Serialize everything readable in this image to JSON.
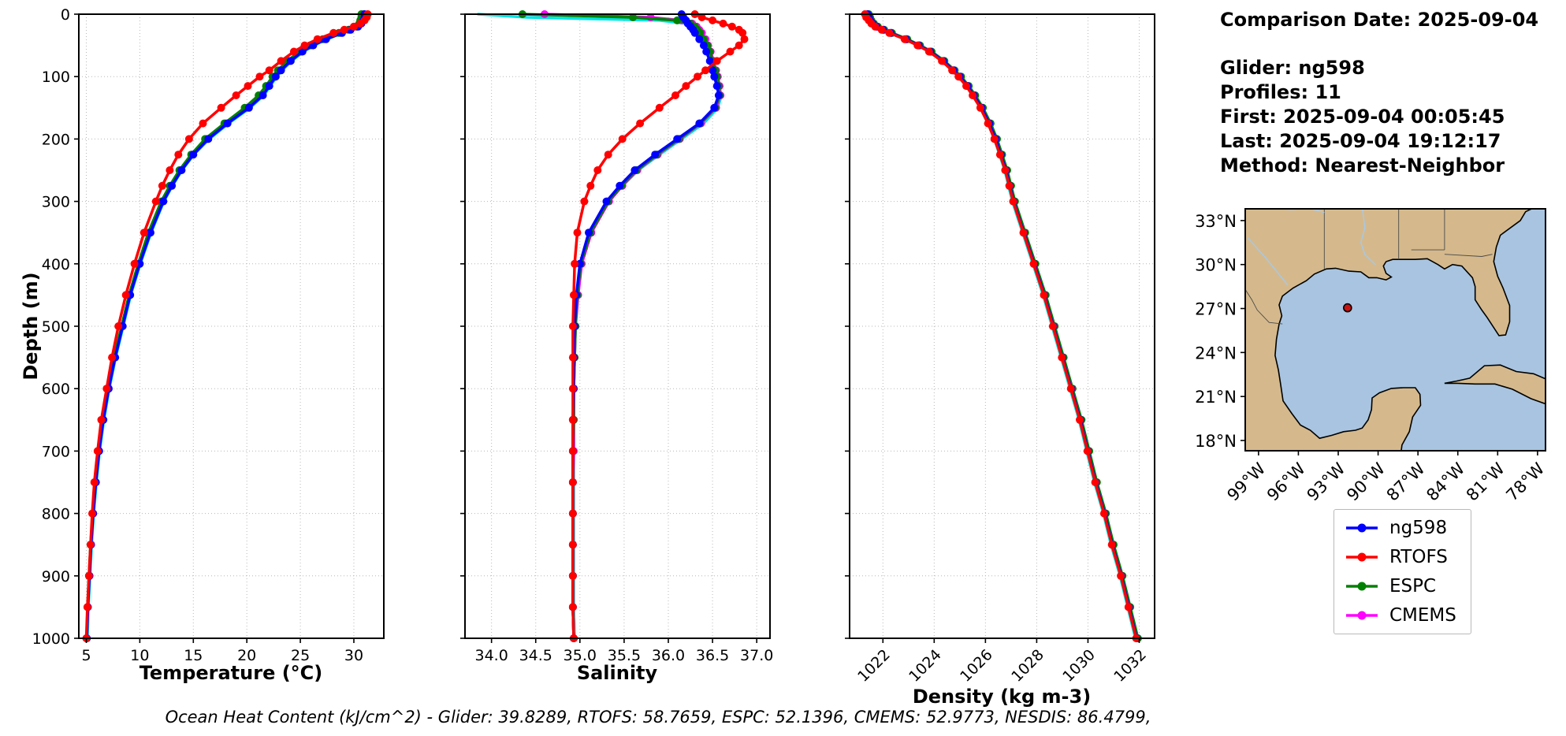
{
  "info": {
    "comparison_date": "Comparison Date: 2025-09-04",
    "glider": "Glider: ng598",
    "profiles": "Profiles: 11",
    "first": "First: 2025-09-04 00:05:45",
    "last": "Last: 2025-09-04 19:12:17",
    "method": "Method: Nearest-Neighbor"
  },
  "footer_note": "Ocean Heat Content (kJ/cm^2) - Glider: 39.8289,  RTOFS: 58.7659,  ESPC: 52.1396,  CMEMS: 52.9773,  NESDIS: 86.4799,",
  "legend": [
    {
      "label": "ng598",
      "color": "#0000ff"
    },
    {
      "label": "RTOFS",
      "color": "#ff0000"
    },
    {
      "label": "ESPC",
      "color": "#008000"
    },
    {
      "label": "CMEMS",
      "color": "#ff00ff"
    }
  ],
  "colors": {
    "ng598": "#0000ff",
    "RTOFS": "#ff0000",
    "ESPC": "#008000",
    "CMEMS": "#ff00ff",
    "glider_raw": "#00e5e5",
    "land": "#d5b98c",
    "ocean": "#a8c4e0",
    "marker": "#cc1111"
  },
  "chart_data": [
    {
      "type": "line",
      "id": "temperature",
      "title": "",
      "xlabel": "Temperature (°C)",
      "ylabel": "Depth (m)",
      "xlim": [
        4.3,
        32.8
      ],
      "ylim": [
        0,
        1000
      ],
      "grid": true,
      "xticks": [
        5,
        10,
        15,
        20,
        25,
        30
      ],
      "xtick_labels": [
        "5",
        "10",
        "15",
        "20",
        "25",
        "30"
      ],
      "rotate_xticks": false,
      "yticks": [
        0,
        100,
        200,
        300,
        400,
        500,
        600,
        700,
        800,
        900,
        1000
      ],
      "show_ytick_labels": true,
      "depths": [
        0,
        5,
        10,
        15,
        20,
        25,
        30,
        40,
        50,
        60,
        75,
        90,
        100,
        115,
        130,
        150,
        175,
        200,
        225,
        250,
        275,
        300,
        350,
        400,
        450,
        500,
        550,
        600,
        650,
        700,
        750,
        800,
        850,
        900,
        950,
        1000
      ],
      "series": [
        {
          "name": "glider-raw",
          "color": "#00e5e5",
          "marker": false,
          "values": [
            31.15,
            31.1,
            31.0,
            30.8,
            30.5,
            29.8,
            29.0,
            27.5,
            26.3,
            25.3,
            24.2,
            23.3,
            22.8,
            22.2,
            21.6,
            20.3,
            18.3,
            16.5,
            15.05,
            13.95,
            13.05,
            12.25,
            11.05,
            10.05,
            9.15,
            8.45,
            7.75,
            7.15,
            6.65,
            6.25,
            5.95,
            5.7,
            5.5,
            5.35,
            5.2,
            5.1
          ]
        },
        {
          "name": "CMEMS",
          "color": "#ff00ff",
          "marker": true,
          "values": [
            30.9,
            30.85,
            30.8,
            30.6,
            30.3,
            29.6,
            28.75,
            27.25,
            26.05,
            25.05,
            23.95,
            23.05,
            22.55,
            21.95,
            21.3,
            20.0,
            18.05,
            16.25,
            14.9,
            13.8,
            12.9,
            12.1,
            10.9,
            9.9,
            9.05,
            8.35,
            7.65,
            7.05,
            6.55,
            6.18,
            5.87,
            5.62,
            5.43,
            5.28,
            5.13,
            5.04
          ]
        },
        {
          "name": "ESPC",
          "color": "#008000",
          "marker": true,
          "values": [
            30.7,
            30.7,
            30.6,
            30.5,
            30.2,
            29.5,
            28.6,
            27.1,
            25.9,
            24.9,
            23.8,
            22.9,
            22.4,
            21.8,
            21.1,
            19.8,
            17.9,
            16.1,
            14.8,
            13.7,
            12.8,
            12.0,
            10.8,
            9.85,
            9.0,
            8.3,
            7.6,
            7.0,
            6.5,
            6.15,
            5.85,
            5.6,
            5.4,
            5.25,
            5.12,
            5.03
          ]
        },
        {
          "name": "ng598",
          "color": "#0000ff",
          "marker": true,
          "values": [
            31.0,
            31.0,
            30.9,
            30.7,
            30.4,
            29.7,
            28.9,
            27.4,
            26.2,
            25.2,
            24.1,
            23.2,
            22.7,
            22.1,
            21.5,
            20.2,
            18.2,
            16.4,
            15.0,
            13.9,
            13.0,
            12.2,
            11.0,
            10.0,
            9.1,
            8.4,
            7.7,
            7.1,
            6.6,
            6.2,
            5.9,
            5.65,
            5.45,
            5.3,
            5.15,
            5.05
          ]
        },
        {
          "name": "RTOFS",
          "color": "#ff0000",
          "marker": true,
          "values": [
            31.3,
            31.2,
            31.0,
            30.6,
            30.0,
            29.1,
            28.1,
            26.6,
            25.4,
            24.4,
            23.2,
            22.1,
            21.2,
            20.1,
            19.0,
            17.6,
            15.9,
            14.6,
            13.6,
            12.8,
            12.1,
            11.5,
            10.4,
            9.5,
            8.7,
            8.0,
            7.4,
            6.9,
            6.4,
            6.05,
            5.75,
            5.55,
            5.4,
            5.25,
            5.1,
            5.0
          ]
        }
      ]
    },
    {
      "type": "line",
      "id": "salinity",
      "title": "",
      "xlabel": "Salinity",
      "ylabel": "",
      "xlim": [
        33.7,
        37.15
      ],
      "ylim": [
        0,
        1000
      ],
      "grid": true,
      "xticks": [
        34.0,
        34.5,
        35.0,
        35.5,
        36.0,
        36.5,
        37.0
      ],
      "xtick_labels": [
        "34.0",
        "34.5",
        "35.0",
        "35.5",
        "36.0",
        "36.5",
        "37.0"
      ],
      "rotate_xticks": false,
      "yticks": [
        0,
        100,
        200,
        300,
        400,
        500,
        600,
        700,
        800,
        900,
        1000
      ],
      "show_ytick_labels": false,
      "depths": [
        0,
        5,
        10,
        15,
        20,
        25,
        30,
        40,
        50,
        60,
        75,
        90,
        100,
        115,
        130,
        150,
        175,
        200,
        225,
        250,
        275,
        300,
        350,
        400,
        450,
        500,
        550,
        600,
        650,
        700,
        750,
        800,
        850,
        900,
        950,
        1000
      ],
      "series": [
        {
          "name": "glider-raw",
          "color": "#00e5e5",
          "marker": false,
          "values": [
            33.85,
            34.4,
            35.9,
            36.2,
            36.27,
            36.3,
            36.33,
            36.38,
            36.42,
            36.45,
            36.49,
            36.52,
            36.54,
            36.57,
            36.6,
            36.56,
            36.4,
            36.15,
            35.9,
            35.66,
            35.48,
            35.33,
            35.12,
            35.01,
            34.97,
            34.95,
            34.94,
            34.93,
            34.93,
            34.93,
            34.93,
            34.93,
            34.93,
            34.93,
            34.93,
            34.94
          ]
        },
        {
          "name": "CMEMS",
          "color": "#ff00ff",
          "marker": true,
          "values": [
            34.6,
            35.8,
            36.15,
            36.27,
            36.32,
            36.35,
            36.38,
            36.42,
            36.45,
            36.48,
            36.51,
            36.54,
            36.56,
            36.58,
            36.59,
            36.54,
            36.37,
            36.13,
            35.88,
            35.65,
            35.48,
            35.33,
            35.13,
            35.02,
            34.98,
            34.95,
            34.94,
            34.93,
            34.93,
            34.93,
            34.92,
            34.92,
            34.92,
            34.92,
            34.92,
            34.93
          ]
        },
        {
          "name": "ESPC",
          "color": "#008000",
          "marker": true,
          "values": [
            34.35,
            35.6,
            36.1,
            36.25,
            36.3,
            36.33,
            36.36,
            36.4,
            36.44,
            36.47,
            36.5,
            36.53,
            36.55,
            36.57,
            36.58,
            36.53,
            36.36,
            36.12,
            35.87,
            35.64,
            35.47,
            35.32,
            35.12,
            35.01,
            34.97,
            34.95,
            34.94,
            34.93,
            34.93,
            34.92,
            34.92,
            34.92,
            34.92,
            34.92,
            34.92,
            34.93
          ]
        },
        {
          "name": "ng598",
          "color": "#0000ff",
          "marker": true,
          "values": [
            36.15,
            36.17,
            36.2,
            36.22,
            36.25,
            36.28,
            36.3,
            36.35,
            36.4,
            36.43,
            36.47,
            36.5,
            36.52,
            36.55,
            36.57,
            36.52,
            36.35,
            36.1,
            35.85,
            35.62,
            35.45,
            35.3,
            35.1,
            35.0,
            34.96,
            34.94,
            34.93,
            34.93,
            34.92,
            34.92,
            34.92,
            34.92,
            34.92,
            34.92,
            34.92,
            34.93
          ]
        },
        {
          "name": "RTOFS",
          "color": "#ff0000",
          "marker": true,
          "values": [
            36.3,
            36.38,
            36.5,
            36.62,
            36.72,
            36.8,
            36.84,
            36.86,
            36.8,
            36.7,
            36.55,
            36.42,
            36.33,
            36.2,
            36.08,
            35.9,
            35.68,
            35.48,
            35.32,
            35.2,
            35.12,
            35.05,
            34.97,
            34.94,
            34.93,
            34.92,
            34.92,
            34.92,
            34.92,
            34.92,
            34.92,
            34.92,
            34.92,
            34.92,
            34.92,
            34.93
          ]
        }
      ]
    },
    {
      "type": "line",
      "id": "density",
      "title": "",
      "xlabel": "Density (kg m-3)",
      "ylabel": "",
      "xlim": [
        1020.7,
        1032.6
      ],
      "ylim": [
        0,
        1000
      ],
      "grid": true,
      "xticks": [
        1022,
        1024,
        1026,
        1028,
        1030,
        1032
      ],
      "xtick_labels": [
        "1022",
        "1024",
        "1026",
        "1028",
        "1030",
        "1032"
      ],
      "rotate_xticks": true,
      "yticks": [
        0,
        100,
        200,
        300,
        400,
        500,
        600,
        700,
        800,
        900,
        1000
      ],
      "show_ytick_labels": false,
      "depths": [
        0,
        5,
        10,
        15,
        20,
        25,
        30,
        40,
        50,
        60,
        75,
        90,
        100,
        115,
        130,
        150,
        175,
        200,
        225,
        250,
        275,
        300,
        350,
        400,
        450,
        500,
        550,
        600,
        650,
        700,
        750,
        800,
        850,
        900,
        950,
        1000
      ],
      "series": [
        {
          "name": "glider-raw",
          "color": "#00e5e5",
          "marker": false,
          "values": [
            1021.35,
            1021.4,
            1021.45,
            1021.55,
            1021.7,
            1021.95,
            1022.25,
            1022.85,
            1023.35,
            1023.8,
            1024.3,
            1024.7,
            1024.95,
            1025.25,
            1025.5,
            1025.8,
            1026.1,
            1026.35,
            1026.55,
            1026.75,
            1026.9,
            1027.05,
            1027.45,
            1027.85,
            1028.25,
            1028.6,
            1028.95,
            1029.3,
            1029.65,
            1029.95,
            1030.25,
            1030.6,
            1030.9,
            1031.25,
            1031.55,
            1031.85
          ]
        },
        {
          "name": "CMEMS",
          "color": "#ff00ff",
          "marker": true,
          "values": [
            1021.42,
            1021.47,
            1021.52,
            1021.62,
            1021.77,
            1022.02,
            1022.32,
            1022.92,
            1023.42,
            1023.87,
            1024.37,
            1024.77,
            1025.02,
            1025.32,
            1025.57,
            1025.87,
            1026.17,
            1026.42,
            1026.62,
            1026.82,
            1026.97,
            1027.12,
            1027.52,
            1027.92,
            1028.32,
            1028.67,
            1029.02,
            1029.37,
            1029.72,
            1030.02,
            1030.32,
            1030.67,
            1030.97,
            1031.32,
            1031.62,
            1031.92
          ]
        },
        {
          "name": "ESPC",
          "color": "#008000",
          "marker": true,
          "values": [
            1021.45,
            1021.5,
            1021.55,
            1021.65,
            1021.8,
            1022.05,
            1022.35,
            1022.95,
            1023.45,
            1023.9,
            1024.4,
            1024.8,
            1025.05,
            1025.35,
            1025.6,
            1025.9,
            1026.2,
            1026.45,
            1026.65,
            1026.85,
            1027.0,
            1027.15,
            1027.55,
            1027.95,
            1028.35,
            1028.7,
            1029.05,
            1029.4,
            1029.75,
            1030.05,
            1030.35,
            1030.7,
            1031.0,
            1031.35,
            1031.65,
            1031.95
          ]
        },
        {
          "name": "ng598",
          "color": "#0000ff",
          "marker": true,
          "values": [
            1021.4,
            1021.45,
            1021.5,
            1021.6,
            1021.75,
            1022.0,
            1022.3,
            1022.9,
            1023.4,
            1023.85,
            1024.35,
            1024.75,
            1025.0,
            1025.3,
            1025.55,
            1025.85,
            1026.15,
            1026.4,
            1026.6,
            1026.8,
            1026.95,
            1027.1,
            1027.5,
            1027.9,
            1028.3,
            1028.65,
            1029.0,
            1029.35,
            1029.7,
            1030.0,
            1030.3,
            1030.65,
            1030.95,
            1031.3,
            1031.6,
            1031.9
          ]
        },
        {
          "name": "RTOFS",
          "color": "#ff0000",
          "marker": true,
          "values": [
            1021.3,
            1021.35,
            1021.45,
            1021.55,
            1021.7,
            1021.95,
            1022.25,
            1022.85,
            1023.35,
            1023.8,
            1024.3,
            1024.7,
            1024.95,
            1025.25,
            1025.5,
            1025.8,
            1026.1,
            1026.35,
            1026.57,
            1026.77,
            1026.93,
            1027.08,
            1027.48,
            1027.88,
            1028.28,
            1028.63,
            1028.98,
            1029.33,
            1029.68,
            1029.98,
            1030.28,
            1030.63,
            1030.93,
            1031.28,
            1031.58,
            1031.88
          ]
        }
      ]
    },
    {
      "type": "map",
      "id": "location-map",
      "region": "Gulf of Mexico",
      "lat_ticks": [
        33,
        30,
        27,
        24,
        21,
        18
      ],
      "lat_tick_labels": [
        "33°N",
        "30°N",
        "27°N",
        "24°N",
        "21°N",
        "18°N"
      ],
      "lon_ticks": [
        -99,
        -96,
        -93,
        -90,
        -87,
        -84,
        -81,
        -78
      ],
      "lon_tick_labels": [
        "99°W",
        "96°W",
        "93°W",
        "90°W",
        "87°W",
        "84°W",
        "81°W",
        "78°W"
      ],
      "marker": {
        "lon": -92.3,
        "lat": 27.05,
        "color": "#cc1111"
      }
    }
  ]
}
